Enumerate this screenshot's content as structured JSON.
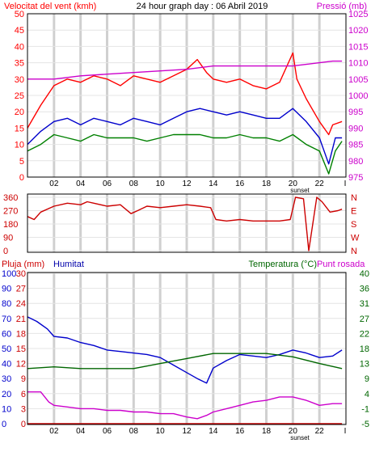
{
  "chart_data": [
    {
      "type": "line",
      "title": "24 hour graph day : 06 Abril 2019",
      "left_label": "Velocitat del vent (kmh)",
      "right_label": "Pressió (mb)",
      "x_tick_labels": [
        "02",
        "04",
        "06",
        "08",
        "10",
        "12",
        "14",
        "16",
        "18",
        "20",
        "22"
      ],
      "x_tick_hours": [
        2,
        4,
        6,
        8,
        10,
        12,
        14,
        16,
        18,
        20,
        22
      ],
      "x_end_label": "I",
      "sunset_label": "sunset",
      "sunset_hour": 20.2,
      "xlim": [
        0,
        24
      ],
      "y_left": {
        "lim": [
          0,
          50
        ],
        "ticks": [
          0,
          5,
          10,
          15,
          20,
          25,
          30,
          35,
          40,
          45,
          50
        ]
      },
      "y_right": {
        "lim": [
          975,
          1025
        ],
        "ticks": [
          975,
          980,
          985,
          990,
          995,
          1000,
          1005,
          1010,
          1015,
          1020,
          1025
        ]
      },
      "series": [
        {
          "color": "#ff0000",
          "axis": "left",
          "x": [
            0,
            1,
            2,
            3,
            4,
            5,
            6,
            7,
            8,
            9,
            10,
            11,
            12,
            12.8,
            13.5,
            14,
            15,
            16,
            17,
            18,
            19,
            20,
            20.3,
            21,
            22,
            22.7,
            23,
            23.7
          ],
          "y": [
            15,
            22,
            28,
            30,
            29,
            31,
            30,
            28,
            31,
            30,
            29,
            31,
            33,
            36,
            32,
            30,
            29,
            30,
            28,
            27,
            29,
            38,
            30,
            24,
            17,
            13,
            16,
            17
          ]
        },
        {
          "color": "#0000cc",
          "axis": "left",
          "x": [
            0,
            1,
            2,
            3,
            4,
            5,
            6,
            7,
            8,
            9,
            10,
            11,
            12,
            13,
            14,
            15,
            16,
            17,
            18,
            19,
            20,
            21,
            22,
            22.7,
            23.2,
            23.7
          ],
          "y": [
            10,
            14,
            17,
            18,
            16,
            18,
            17,
            16,
            18,
            17,
            16,
            18,
            20,
            21,
            20,
            19,
            20,
            19,
            18,
            18,
            21,
            17,
            12,
            4,
            12,
            12
          ]
        },
        {
          "color": "#008000",
          "axis": "left",
          "x": [
            0,
            1,
            2,
            3,
            4,
            5,
            6,
            7,
            8,
            9,
            10,
            11,
            12,
            13,
            14,
            15,
            16,
            17,
            18,
            19,
            20,
            21,
            22,
            22.7,
            23.2,
            23.7
          ],
          "y": [
            8,
            10,
            13,
            12,
            11,
            13,
            12,
            12,
            12,
            11,
            12,
            13,
            13,
            13,
            12,
            12,
            13,
            12,
            12,
            11,
            13,
            10,
            8,
            1,
            8,
            11
          ]
        },
        {
          "color": "#cc00cc",
          "axis": "right",
          "x": [
            0,
            2,
            4,
            6,
            8,
            10,
            12,
            14,
            16,
            18,
            19,
            20,
            21,
            22,
            23,
            23.7
          ],
          "y": [
            1005,
            1005,
            1006,
            1006.5,
            1007,
            1007.5,
            1008,
            1009,
            1009,
            1009,
            1009,
            1009,
            1009.5,
            1010,
            1010.5,
            1010.5
          ]
        }
      ]
    },
    {
      "type": "line",
      "xlim": [
        0,
        24
      ],
      "x_tick_hours": [
        2,
        4,
        6,
        8,
        10,
        12,
        14,
        16,
        18,
        20,
        22
      ],
      "y_left": {
        "lim": [
          0,
          360
        ],
        "ticks": [
          0,
          90,
          180,
          270,
          360
        ]
      },
      "right_tick_labels": [
        "N",
        "W",
        "S",
        "E",
        "N"
      ],
      "series": [
        {
          "color": "#cc0000",
          "axis": "left",
          "x": [
            0,
            0.5,
            1,
            2,
            3,
            4,
            4.5,
            5,
            6,
            7,
            7.8,
            8.3,
            9,
            10,
            11,
            12,
            13,
            13.8,
            14.2,
            15,
            16,
            17,
            18,
            19,
            19.8,
            20.2,
            20.8,
            21.2,
            21.8,
            22.2,
            22.8,
            23.4,
            23.7
          ],
          "y": [
            230,
            210,
            260,
            300,
            320,
            310,
            330,
            320,
            300,
            310,
            250,
            270,
            300,
            290,
            300,
            310,
            300,
            290,
            210,
            200,
            210,
            200,
            200,
            200,
            210,
            360,
            350,
            0,
            360,
            330,
            260,
            270,
            280
          ]
        }
      ]
    },
    {
      "type": "line",
      "left_label": "Pluja (mm)",
      "left2_label": "Humitat",
      "right_label": "Temperatura (°C)",
      "right2_label": "Punt rosada",
      "x_tick_labels": [
        "02",
        "04",
        "06",
        "08",
        "10",
        "12",
        "14",
        "16",
        "18",
        "20",
        "22"
      ],
      "x_tick_hours": [
        2,
        4,
        6,
        8,
        10,
        12,
        14,
        16,
        18,
        20,
        22
      ],
      "x_end_label": "I",
      "sunset_label": "sunset",
      "sunset_hour": 20.2,
      "xlim": [
        0,
        24
      ],
      "y_rain": {
        "lim": [
          0,
          30
        ],
        "ticks": [
          0,
          3,
          6,
          9,
          12,
          15,
          18,
          21,
          24,
          27,
          30
        ]
      },
      "y_humidity": {
        "lim": [
          0,
          100
        ],
        "ticks": [
          0,
          10,
          20,
          30,
          40,
          50,
          60,
          70,
          80,
          90,
          100
        ]
      },
      "y_temp": {
        "lim": [
          -5,
          40
        ],
        "tick_labels": [
          "-5",
          "-1",
          "4",
          "9",
          "13",
          "18",
          "22",
          "27",
          "31",
          "36",
          "40"
        ]
      },
      "series": [
        {
          "color": "#0000cc",
          "axis": "humidity",
          "x": [
            0,
            0.7,
            1.5,
            2,
            3,
            4,
            5,
            6,
            7,
            8,
            9,
            10,
            11,
            12,
            12.8,
            13.5,
            14,
            15,
            16,
            17,
            18,
            19,
            20,
            21,
            22,
            23,
            23.7
          ],
          "y": [
            71,
            68,
            63,
            58,
            57,
            54,
            52,
            49,
            48,
            47,
            46,
            44,
            39,
            34,
            30,
            27,
            37,
            42,
            46,
            45,
            44,
            46,
            49,
            47,
            44,
            45,
            49
          ]
        },
        {
          "color": "#006600",
          "axis": "temp",
          "x": [
            0,
            2,
            4,
            6,
            8,
            10,
            12,
            14,
            16,
            18,
            20,
            22,
            23.7
          ],
          "y": [
            11.5,
            12,
            11.5,
            11.5,
            11.5,
            13,
            14.5,
            16,
            16,
            16,
            15,
            13,
            11.5
          ]
        },
        {
          "color": "#cc00cc",
          "axis": "temp",
          "x": [
            0,
            1,
            1.6,
            2,
            3,
            4,
            5,
            6,
            7,
            8,
            9,
            10,
            11,
            12,
            12.8,
            13.5,
            14,
            15,
            16,
            17,
            18,
            19,
            20,
            21,
            22,
            23,
            23.7
          ],
          "y": [
            4.5,
            4.5,
            1.5,
            0.5,
            0,
            -0.5,
            -0.5,
            -1,
            -1,
            -1.5,
            -1.5,
            -2,
            -2,
            -3,
            -3.5,
            -2.5,
            -1.5,
            -0.5,
            0.5,
            1.5,
            2,
            3,
            3,
            2,
            0.5,
            1,
            1
          ]
        },
        {
          "color": "#cc0000",
          "axis": "rain",
          "x": [
            0,
            23.7
          ],
          "y": [
            0,
            0
          ]
        }
      ]
    }
  ]
}
